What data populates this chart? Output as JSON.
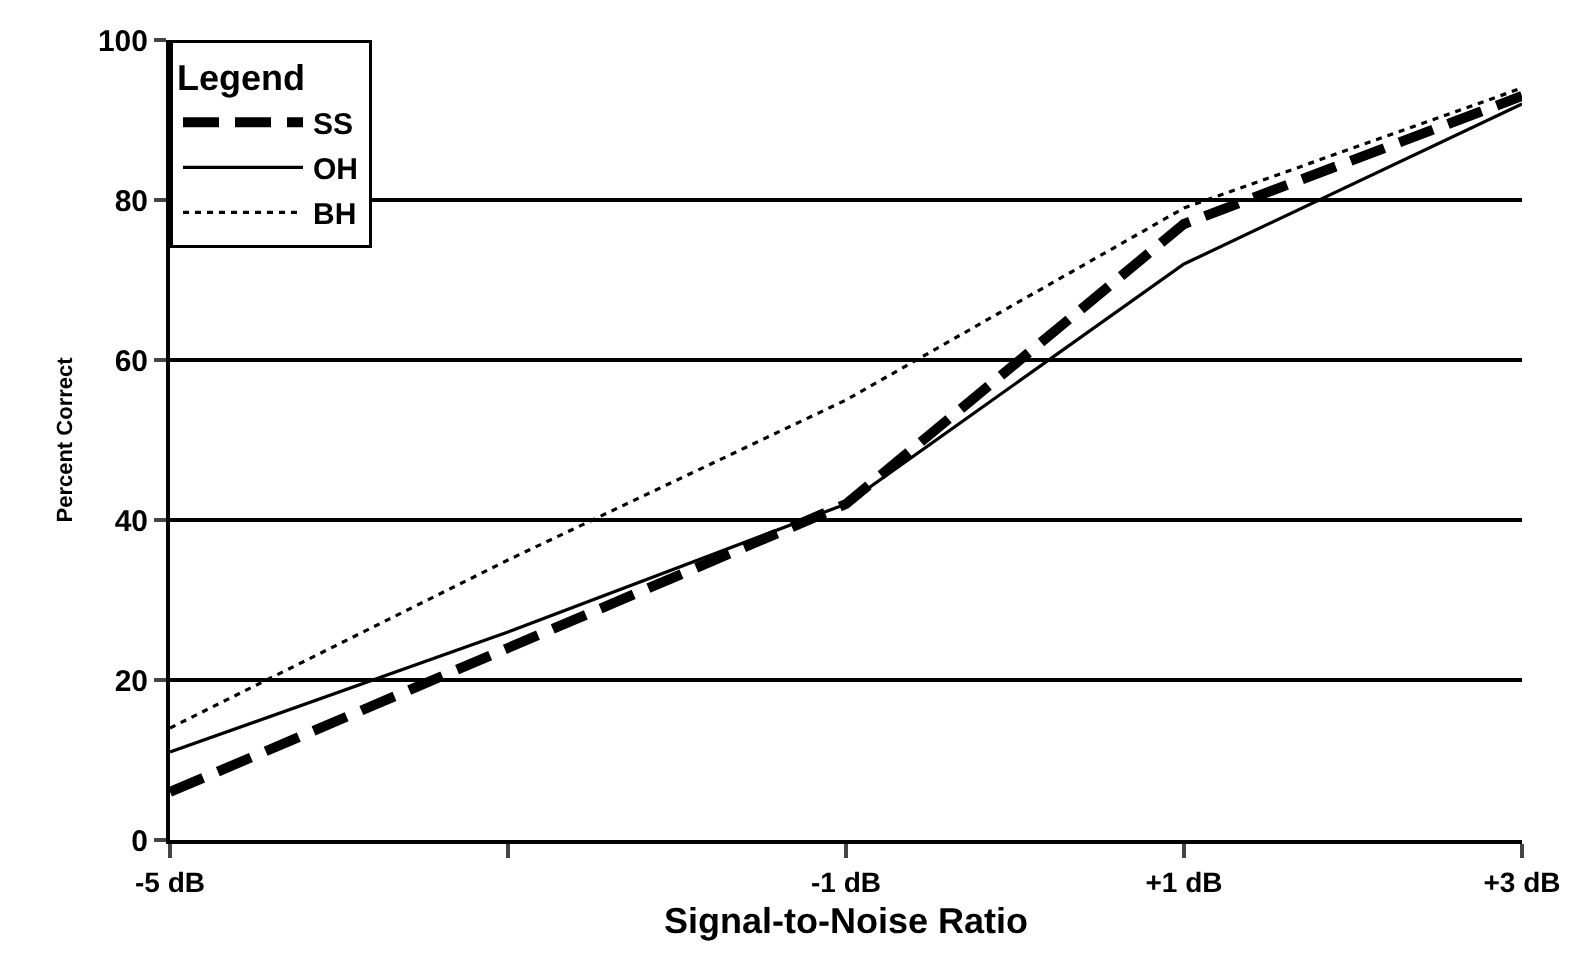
{
  "chart_data": {
    "type": "line",
    "xlabel": "Signal-to-Noise Ratio",
    "ylabel": "Percent Correct",
    "legend_title": "Legend",
    "x": [
      -5,
      -3,
      -1,
      1,
      3
    ],
    "series": [
      {
        "name": "SS",
        "color": "#000000",
        "line_style": "dashed",
        "values": [
          6,
          24,
          42,
          77,
          93
        ]
      },
      {
        "name": "OH",
        "color": "#000000",
        "line_style": "solid",
        "values": [
          11,
          26,
          42,
          72,
          92
        ]
      },
      {
        "name": "BH",
        "color": "#000000",
        "line_style": "dotted",
        "values": [
          14,
          35,
          55,
          79,
          94
        ]
      }
    ],
    "xlim": [
      -5,
      3
    ],
    "xticks": [
      {
        "value": -5,
        "label": "-5 dB"
      },
      {
        "value": -3,
        "label": null
      },
      {
        "value": -1,
        "label": "-1 dB"
      },
      {
        "value": 1,
        "label": "+1 dB"
      },
      {
        "value": 3,
        "label": "+3 dB"
      }
    ],
    "ylim": [
      0,
      100
    ],
    "yticks": [
      0,
      20,
      40,
      60,
      80,
      100
    ],
    "grid": "y",
    "legend": "top left",
    "marker": "none"
  }
}
